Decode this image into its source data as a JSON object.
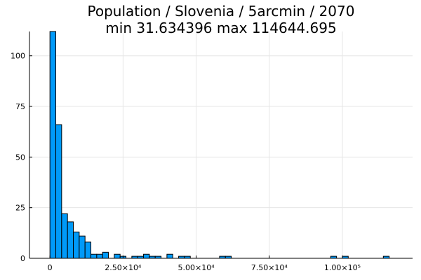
{
  "chart_data": {
    "type": "bar",
    "title": "Population / Slovenia / 5arcmin / 2070",
    "subtitle": "min 31.634396  max 114644.695",
    "xlabel": "",
    "ylabel": "",
    "bin_width": 2000,
    "bins": [
      {
        "x0": 0,
        "x1": 2000,
        "count": 112
      },
      {
        "x0": 2000,
        "x1": 4000,
        "count": 66
      },
      {
        "x0": 4000,
        "x1": 6000,
        "count": 22
      },
      {
        "x0": 6000,
        "x1": 8000,
        "count": 18
      },
      {
        "x0": 8000,
        "x1": 10000,
        "count": 13
      },
      {
        "x0": 10000,
        "x1": 12000,
        "count": 11
      },
      {
        "x0": 12000,
        "x1": 14000,
        "count": 8
      },
      {
        "x0": 14000,
        "x1": 16000,
        "count": 2
      },
      {
        "x0": 16000,
        "x1": 18000,
        "count": 2
      },
      {
        "x0": 18000,
        "x1": 20000,
        "count": 3
      },
      {
        "x0": 22000,
        "x1": 24000,
        "count": 2
      },
      {
        "x0": 24000,
        "x1": 26000,
        "count": 1
      },
      {
        "x0": 28000,
        "x1": 30000,
        "count": 1
      },
      {
        "x0": 30000,
        "x1": 32000,
        "count": 1
      },
      {
        "x0": 32000,
        "x1": 34000,
        "count": 2
      },
      {
        "x0": 34000,
        "x1": 36000,
        "count": 1
      },
      {
        "x0": 36000,
        "x1": 38000,
        "count": 1
      },
      {
        "x0": 40000,
        "x1": 42000,
        "count": 2
      },
      {
        "x0": 44000,
        "x1": 46000,
        "count": 1
      },
      {
        "x0": 46000,
        "x1": 48000,
        "count": 1
      },
      {
        "x0": 58000,
        "x1": 60000,
        "count": 1
      },
      {
        "x0": 60000,
        "x1": 62000,
        "count": 1
      },
      {
        "x0": 96000,
        "x1": 98000,
        "count": 1
      },
      {
        "x0": 100000,
        "x1": 102000,
        "count": 1
      },
      {
        "x0": 114000,
        "x1": 116000,
        "count": 1
      }
    ],
    "xlim": [
      -7000,
      124000
    ],
    "ylim": [
      0,
      112
    ],
    "x_ticks": [
      {
        "value": 0,
        "label": "0"
      },
      {
        "value": 25000,
        "label": "2.50×10⁴"
      },
      {
        "value": 50000,
        "label": "5.00×10⁴"
      },
      {
        "value": 75000,
        "label": "7.50×10⁴"
      },
      {
        "value": 100000,
        "label": "1.00×10⁵"
      }
    ],
    "y_ticks": [
      {
        "value": 0,
        "label": "0"
      },
      {
        "value": 25,
        "label": "25"
      },
      {
        "value": 50,
        "label": "50"
      },
      {
        "value": 75,
        "label": "75"
      },
      {
        "value": 100,
        "label": "100"
      }
    ],
    "grid": true,
    "legend": "none",
    "colors": {
      "bar_fill": "#009af9",
      "bar_stroke": "#000000",
      "grid": "#e6e6e6",
      "axis": "#000000"
    }
  }
}
